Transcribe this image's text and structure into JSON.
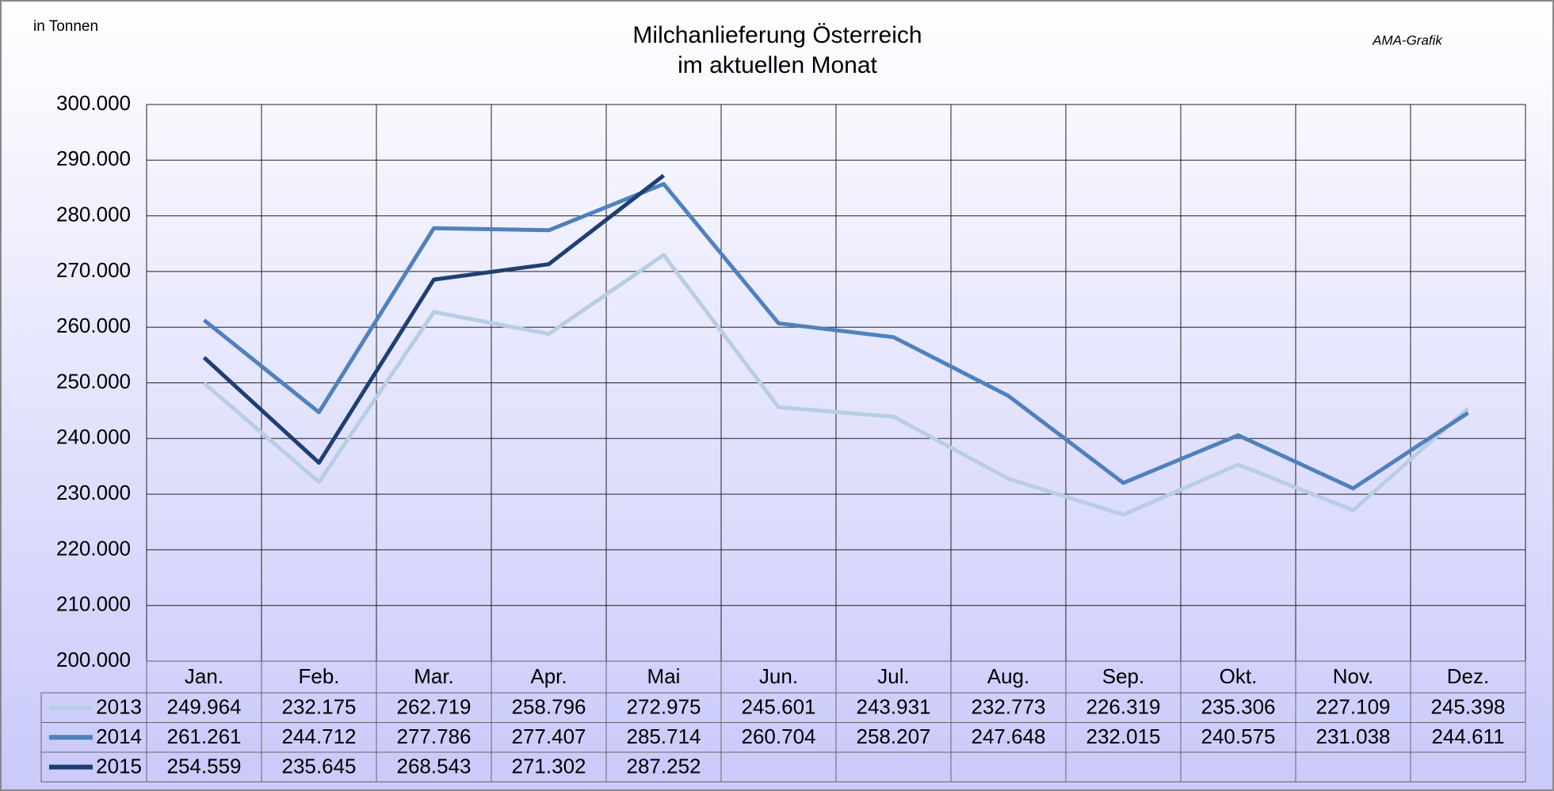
{
  "chart_data": {
    "type": "line",
    "title": "Milchanlieferung Österreich",
    "subtitle": "im aktuellen Monat",
    "unit_label": "in Tonnen",
    "source": "AMA-Grafik",
    "categories": [
      "Jan.",
      "Feb.",
      "Mar.",
      "Apr.",
      "Mai",
      "Jun.",
      "Jul.",
      "Aug.",
      "Sep.",
      "Okt.",
      "Nov.",
      "Dez."
    ],
    "series": [
      {
        "name": "2013",
        "color": "#b9cde5",
        "values": [
          249964,
          232175,
          262719,
          258796,
          272975,
          245601,
          243931,
          232773,
          226319,
          235306,
          227109,
          245398
        ],
        "value_labels": [
          "249.964",
          "232.175",
          "262.719",
          "258.796",
          "272.975",
          "245.601",
          "243.931",
          "232.773",
          "226.319",
          "235.306",
          "227.109",
          "245.398"
        ]
      },
      {
        "name": "2014",
        "color": "#4f81bd",
        "values": [
          261261,
          244712,
          277786,
          277407,
          285714,
          260704,
          258207,
          247648,
          232015,
          240575,
          231038,
          244611
        ],
        "value_labels": [
          "261.261",
          "244.712",
          "277.786",
          "277.407",
          "285.714",
          "260.704",
          "258.207",
          "247.648",
          "232.015",
          "240.575",
          "231.038",
          "244.611"
        ]
      },
      {
        "name": "2015",
        "color": "#1f3f73",
        "values": [
          254559,
          235645,
          268543,
          271302,
          287252,
          null,
          null,
          null,
          null,
          null,
          null,
          null
        ],
        "value_labels": [
          "254.559",
          "235.645",
          "268.543",
          "271.302",
          "287.252",
          null,
          null,
          null,
          null,
          null,
          null,
          null
        ]
      }
    ],
    "ylim": [
      200000,
      300000
    ],
    "yticks": [
      {
        "value": 200000,
        "label": "200.000"
      },
      {
        "value": 210000,
        "label": "210.000"
      },
      {
        "value": 220000,
        "label": "220.000"
      },
      {
        "value": 230000,
        "label": "230.000"
      },
      {
        "value": 240000,
        "label": "240.000"
      },
      {
        "value": 250000,
        "label": "250.000"
      },
      {
        "value": 260000,
        "label": "260.000"
      },
      {
        "value": 270000,
        "label": "270.000"
      },
      {
        "value": 280000,
        "label": "280.000"
      },
      {
        "value": 290000,
        "label": "290.000"
      },
      {
        "value": 300000,
        "label": "300.000"
      }
    ],
    "grid": true
  }
}
